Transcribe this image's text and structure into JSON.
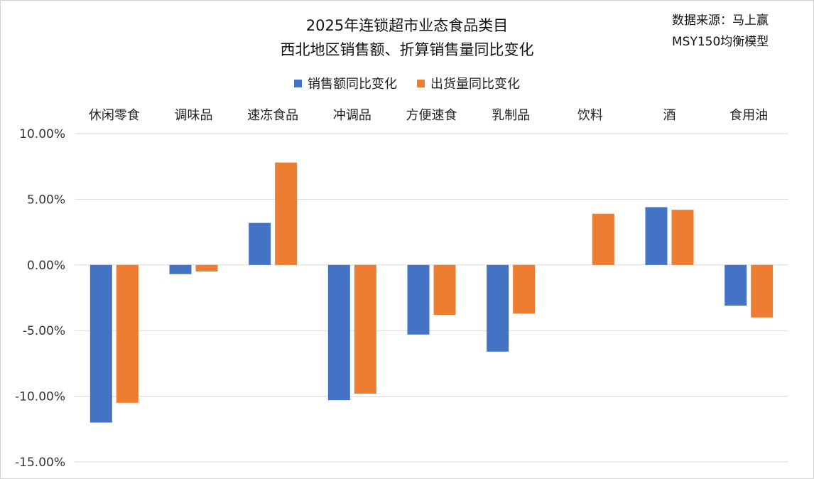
{
  "header": {
    "title_line1": "2025年连锁超市业态食品类目",
    "title_line2": "西北地区销售额、折算销售量同比变化",
    "source_line1": "数据来源：马上赢",
    "source_line2": "MSY150均衡模型"
  },
  "colors": {
    "series1": "#4472c4",
    "series2": "#ed7d31",
    "grid": "#d9d9d9"
  },
  "chart_data": {
    "type": "bar",
    "title": "2025年连锁超市业态食品类目 西北地区销售额、折算销售量同比变化",
    "categories": [
      "休闲零食",
      "调味品",
      "速冻食品",
      "冲调品",
      "方便速食",
      "乳制品",
      "饮料",
      "酒",
      "食用油"
    ],
    "series": [
      {
        "name": "销售额同比变化",
        "values": [
          -12.0,
          -0.7,
          3.2,
          -10.3,
          -5.3,
          -6.6,
          0.0,
          4.4,
          -3.1
        ]
      },
      {
        "name": "出货量同比变化",
        "values": [
          -10.5,
          -0.5,
          7.8,
          -9.8,
          -3.8,
          -3.7,
          3.9,
          4.2,
          -4.0
        ]
      }
    ],
    "yticks": [
      "10.00%",
      "5.00%",
      "0.00%",
      "-5.00%",
      "-10.00%",
      "-15.00%"
    ],
    "ylim": [
      -15,
      10
    ],
    "xlabel": "",
    "ylabel": "",
    "grid": true,
    "legend": "top"
  }
}
